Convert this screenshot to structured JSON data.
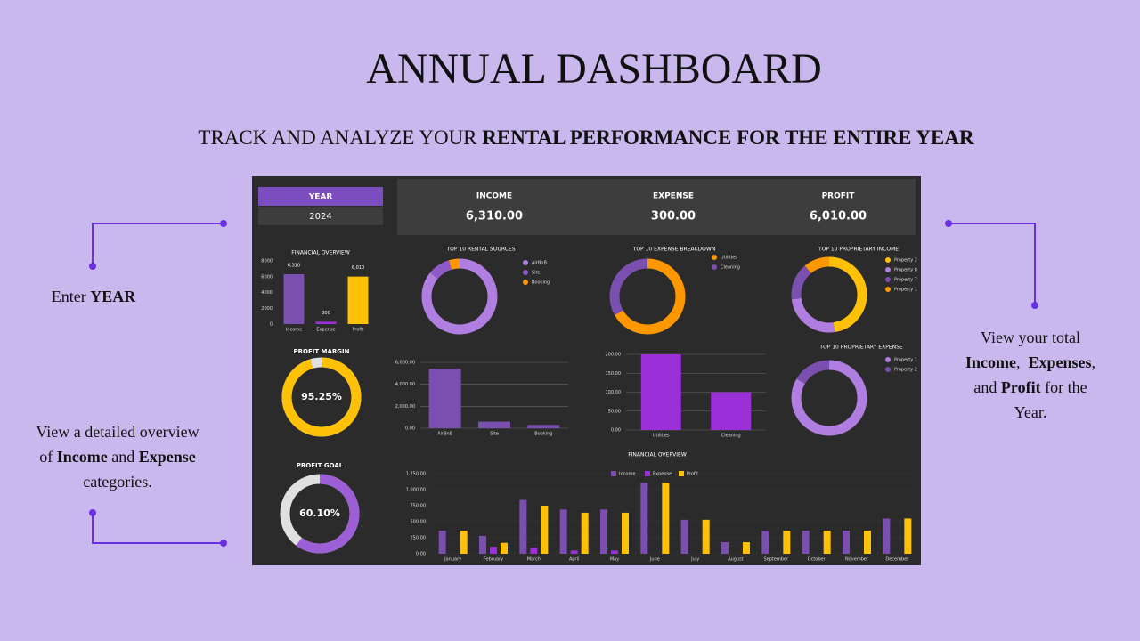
{
  "header": {
    "title": "ANNUAL DASHBOARD",
    "subtitle": [
      {
        "text": "TRACK AND ANALYZE YOUR "
      },
      {
        "text": "RENTAL PERFORMANCE FOR THE ENTIRE YEAR",
        "bold": true
      }
    ]
  },
  "callouts": [
    {
      "lines": [
        [
          {
            "text": "Enter "
          },
          {
            "text": "YEAR",
            "bold": true
          }
        ]
      ]
    },
    {
      "lines": [
        [
          {
            "text": "View a detailed overview"
          }
        ],
        [
          {
            "text": "of "
          },
          {
            "text": "Income",
            "bold": true
          },
          {
            "text": " and "
          },
          {
            "text": "Expense",
            "bold": true
          }
        ],
        [
          {
            "text": "categories."
          }
        ]
      ]
    },
    {
      "lines": [
        [
          {
            "text": "View your total"
          }
        ],
        [
          {
            "text": "Income",
            "bold": true
          },
          {
            "text": ",  "
          },
          {
            "text": "Expenses",
            "bold": true
          },
          {
            "text": ","
          }
        ],
        [
          {
            "text": "and "
          },
          {
            "text": "Profit",
            "bold": true
          },
          {
            "text": " for the"
          }
        ],
        [
          {
            "text": "Year."
          }
        ]
      ]
    }
  ],
  "dashboard": {
    "year": {
      "label": "YEAR",
      "value": "2024"
    },
    "kpis": [
      {
        "label": "INCOME",
        "value": "6,310.00"
      },
      {
        "label": "EXPENSE",
        "value": "300.00"
      },
      {
        "label": "PROFIT",
        "value": "6,010.00"
      }
    ],
    "gauges": [
      {
        "title": "PROFIT MARGIN",
        "value": 95.25,
        "value_label": "95.25%",
        "color": "#ffc107",
        "track": "#e0e0e0"
      },
      {
        "title": "PROFIT GOAL",
        "value": 60.1,
        "value_label": "60.10%",
        "color": "#9c5fd6",
        "track": "#e0e0e0"
      }
    ],
    "donuts": [
      {
        "type": "pie",
        "title": "TOP 10 RENTAL SOURCES",
        "categories": [
          "AirBnB",
          "Site",
          "Booking"
        ],
        "values": [
          5410,
          600,
          300
        ],
        "colors": [
          "#b07ee0",
          "#8e5ac8",
          "#ff9800"
        ]
      },
      {
        "type": "pie",
        "title": "TOP 10 EXPENSE BREAKDOWN",
        "categories": [
          "Utilities",
          "Cleaning"
        ],
        "values": [
          200,
          100
        ],
        "colors": [
          "#ff9800",
          "#7b4fb0"
        ]
      },
      {
        "type": "pie",
        "title": "TOP 10 PROPRIETARY INCOME",
        "categories": [
          "Property 2",
          "Property 8",
          "Property 7",
          "Property 1"
        ],
        "values": [
          3000,
          1600,
          1000,
          710
        ],
        "colors": [
          "#ffc107",
          "#b07ee0",
          "#7b4fb0",
          "#ff9800"
        ]
      },
      {
        "type": "pie",
        "title": "TOP 10 PROPRIETARY EXPENSE",
        "categories": [
          "Property 1",
          "Property 2"
        ],
        "values": [
          250,
          50
        ],
        "colors": [
          "#b07ee0",
          "#7b4fb0"
        ]
      }
    ],
    "bars": [
      {
        "type": "bar",
        "title": "FINANCIAL OVERVIEW",
        "categories": [
          "Income",
          "Expense",
          "Profit"
        ],
        "values": [
          6310,
          300,
          6010
        ],
        "value_labels": [
          "6,310",
          "300",
          "6,010"
        ],
        "colors": [
          "#7b4fb0",
          "#9b30d9",
          "#ffc107"
        ],
        "ylim": [
          0,
          8000
        ],
        "yticks": [
          0,
          2000,
          4000,
          6000,
          8000
        ],
        "grid": false
      },
      {
        "type": "bar",
        "categories": [
          "AirBnB",
          "Site",
          "Booking"
        ],
        "values": [
          5410,
          600,
          300
        ],
        "colors": [
          "#7b4fb0",
          "#7b4fb0",
          "#7b4fb0"
        ],
        "ylim": [
          0,
          6000
        ],
        "yticks": [
          {
            "value": 0,
            "label": "0.00"
          },
          {
            "value": 2000,
            "label": "2,000.00"
          },
          {
            "value": 4000,
            "label": "4,000.00"
          },
          {
            "value": 6000,
            "label": "6,000.00"
          }
        ],
        "grid": true
      },
      {
        "type": "bar",
        "categories": [
          "Utilities",
          "Cleaning"
        ],
        "values": [
          200,
          100
        ],
        "colors": [
          "#9b30d9",
          "#9b30d9"
        ],
        "ylim": [
          0,
          200
        ],
        "yticks": [
          {
            "value": 0,
            "label": "0.00"
          },
          {
            "value": 50,
            "label": "50.00"
          },
          {
            "value": 100,
            "label": "100.00"
          },
          {
            "value": 150,
            "label": "150.00"
          },
          {
            "value": 200,
            "label": "200.00"
          }
        ],
        "grid": true
      }
    ],
    "monthly": {
      "type": "bar",
      "title": "FINANCIAL OVERVIEW",
      "categories": [
        "January",
        "February",
        "March",
        "April",
        "May",
        "June",
        "July",
        "August",
        "September",
        "October",
        "November",
        "December"
      ],
      "series": [
        {
          "name": "Income",
          "color": "#7b4fb0",
          "values": [
            360,
            280,
            840,
            690,
            690,
            1110,
            530,
            180,
            360,
            360,
            360,
            550
          ]
        },
        {
          "name": "Expense",
          "color": "#9b30d9",
          "values": [
            0,
            110,
            90,
            50,
            50,
            0,
            0,
            0,
            0,
            0,
            0,
            0
          ]
        },
        {
          "name": "Profit",
          "color": "#ffc107",
          "values": [
            360,
            170,
            750,
            640,
            640,
            1110,
            530,
            180,
            360,
            360,
            360,
            550
          ]
        }
      ],
      "ylim": [
        0,
        1250
      ],
      "yticks": [
        {
          "value": 0,
          "label": "0.00"
        },
        {
          "value": 250,
          "label": "250.00"
        },
        {
          "value": 500,
          "label": "500.00"
        },
        {
          "value": 750,
          "label": "750.00"
        },
        {
          "value": 1000,
          "label": "1,000.00"
        },
        {
          "value": 1250,
          "label": "1,250.00"
        }
      ],
      "grid": true
    }
  }
}
